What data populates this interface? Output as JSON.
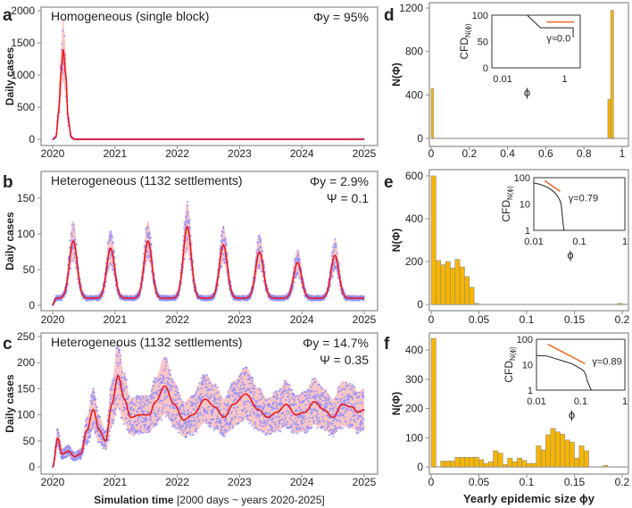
{
  "chart_data": [
    {
      "panel": "a",
      "type": "line",
      "title": "Homogeneous (single block)",
      "annotation": [
        "Φy = 95%"
      ],
      "ylabel": "Daily cases",
      "xlabel": "",
      "ylim": [
        0,
        2000
      ],
      "yticks": [
        0,
        500,
        1000,
        1500,
        2000
      ],
      "xlim": [
        2020,
        2025
      ],
      "xticks": [
        2020,
        2021,
        2022,
        2023,
        2024,
        2025
      ],
      "mean_curve": {
        "x": [
          2020.0,
          2020.05,
          2020.1,
          2020.13,
          2020.17,
          2020.21,
          2020.25,
          2020.3,
          2020.35,
          2025.0
        ],
        "y": [
          0,
          30,
          450,
          1000,
          1400,
          1000,
          300,
          30,
          0,
          0
        ]
      },
      "band_ratio": 0.35,
      "series": [
        "simulated daily cases (points)",
        "mean (red line)",
        "spread (shaded)"
      ]
    },
    {
      "panel": "b",
      "type": "line",
      "title": "Heterogeneous (1132 settlements)",
      "annotation": [
        "Φy = 2.9%",
        "Ψ = 0.1"
      ],
      "ylabel": "Daily cases",
      "xlabel": "",
      "ylim": [
        0,
        160
      ],
      "yticks": [
        0,
        50,
        100,
        150
      ],
      "xlim": [
        2020,
        2025
      ],
      "xticks": [
        2020,
        2021,
        2022,
        2023,
        2024,
        2025
      ],
      "peaks": {
        "x": [
          2020.33,
          2020.93,
          2021.53,
          2022.16,
          2022.74,
          2023.32,
          2023.93,
          2024.53
        ],
        "y": [
          90,
          80,
          90,
          110,
          85,
          75,
          60,
          70
        ]
      },
      "baseline": 10,
      "band_ratio": 0.3
    },
    {
      "panel": "c",
      "type": "line",
      "title": "Heterogeneous (1132 settlements)",
      "annotation": [
        "Φy = 14.7%",
        "Ψ = 0.35"
      ],
      "ylabel": "Daily cases",
      "xlabel": "Simulation time",
      "xlabel_note": "[2000 days ~ years 2020-2025]",
      "ylim": [
        0,
        250
      ],
      "yticks": [
        0,
        50,
        100,
        150,
        200,
        250
      ],
      "xlim": [
        2020,
        2025
      ],
      "xticks": [
        2020,
        2021,
        2022,
        2023,
        2024,
        2025
      ],
      "mean_curve": {
        "x": [
          2020,
          2020.08,
          2020.15,
          2020.25,
          2020.35,
          2020.45,
          2020.55,
          2020.65,
          2020.75,
          2020.85,
          2020.95,
          2021.05,
          2021.15,
          2021.25,
          2021.4,
          2021.55,
          2021.65,
          2021.8,
          2021.95,
          2022.1,
          2022.25,
          2022.45,
          2022.6,
          2022.75,
          2022.9,
          2023.1,
          2023.3,
          2023.45,
          2023.6,
          2023.75,
          2023.9,
          2024.05,
          2024.2,
          2024.35,
          2024.5,
          2024.65,
          2024.8,
          2024.9,
          2025
        ],
        "y": [
          0,
          55,
          25,
          30,
          20,
          25,
          70,
          110,
          70,
          50,
          120,
          175,
          130,
          95,
          100,
          100,
          125,
          155,
          120,
          90,
          100,
          130,
          115,
          95,
          120,
          140,
          110,
          95,
          105,
          120,
          100,
          105,
          125,
          110,
          95,
          120,
          115,
          105,
          110
        ]
      },
      "band_ratio": 0.35
    },
    {
      "panel": "d",
      "type": "bar",
      "ylabel": "N(Φ)",
      "xlabel": "",
      "ylim": [
        0,
        1200
      ],
      "yticks": [
        0,
        400,
        800,
        1200
      ],
      "xlim": [
        0,
        1
      ],
      "xticks": [
        0,
        0.2,
        0.4,
        0.6,
        0.8,
        1
      ],
      "bins": [
        {
          "x0": 0,
          "x1": 0.012,
          "n": 460
        },
        {
          "x0": 0.925,
          "x1": 0.94,
          "n": 360
        },
        {
          "x0": 0.94,
          "x1": 0.955,
          "n": 1180
        }
      ],
      "inset": {
        "ylabel": "CFD",
        "ylabel_sub": "N(ϕ)",
        "xlabel": "ϕ",
        "scale": "linear",
        "yticks": [
          "100",
          "50",
          "0"
        ],
        "xticks": [
          "0.01",
          "1"
        ],
        "annotation": "γ≈0.0"
      }
    },
    {
      "panel": "e",
      "type": "bar",
      "ylabel": "N(Φ)",
      "xlabel": "",
      "ylim": [
        0,
        600
      ],
      "yticks": [
        0,
        200,
        400,
        600
      ],
      "xlim": [
        0,
        0.2
      ],
      "xticks": [
        0,
        0.05,
        0.1,
        0.15,
        0.2
      ],
      "bin_width": 0.005,
      "bin_starts": [
        0,
        0.005,
        0.01,
        0.015,
        0.02,
        0.025,
        0.03,
        0.035,
        0.04,
        0.045,
        0.195
      ],
      "counts": [
        620,
        205,
        185,
        200,
        170,
        210,
        175,
        130,
        80,
        5,
        5
      ],
      "inset": {
        "ylabel": "CFD",
        "ylabel_sub": "N(ϕ)",
        "xlabel": "ϕ",
        "scale": "log",
        "yticks": [
          "100",
          "10",
          "1"
        ],
        "xticks": [
          "0.01",
          "0.1",
          "1"
        ],
        "annotation": "γ=0.79"
      }
    },
    {
      "panel": "f",
      "type": "bar",
      "ylabel": "N(Φ)",
      "xlabel": "Yearly epidemic size ϕy",
      "ylim": [
        0,
        440
      ],
      "yticks": [
        0,
        100,
        200,
        300,
        400
      ],
      "xlim": [
        0,
        0.2
      ],
      "xticks": [
        0,
        0.05,
        0.1,
        0.15,
        0.2
      ],
      "bin_width": 0.005,
      "bin_starts": [
        0,
        0.01,
        0.015,
        0.02,
        0.025,
        0.03,
        0.035,
        0.04,
        0.045,
        0.05,
        0.055,
        0.06,
        0.065,
        0.07,
        0.075,
        0.08,
        0.085,
        0.09,
        0.095,
        0.1,
        0.105,
        0.11,
        0.115,
        0.12,
        0.125,
        0.13,
        0.135,
        0.14,
        0.145,
        0.15,
        0.155,
        0.16,
        0.18
      ],
      "counts": [
        440,
        20,
        20,
        20,
        33,
        33,
        33,
        33,
        33,
        25,
        12,
        18,
        55,
        47,
        8,
        30,
        18,
        30,
        22,
        12,
        12,
        72,
        58,
        110,
        132,
        120,
        112,
        92,
        85,
        30,
        72,
        55,
        5
      ],
      "inset": {
        "ylabel": "CFD",
        "ylabel_sub": "N(ϕ)",
        "xlabel": "ϕ",
        "scale": "log",
        "yticks": [
          "100",
          "10",
          "1"
        ],
        "xticks": [
          "0.01",
          "0.1",
          "1"
        ],
        "annotation": "γ=0.89"
      }
    }
  ],
  "colors": {
    "mean": "#ee1111",
    "band": "#f9c6c6",
    "points": "#8c8cff",
    "bar": "#f7b500",
    "bar_edge": "#8a8a8a",
    "fit": "#ee6622",
    "axis": "#888888"
  }
}
